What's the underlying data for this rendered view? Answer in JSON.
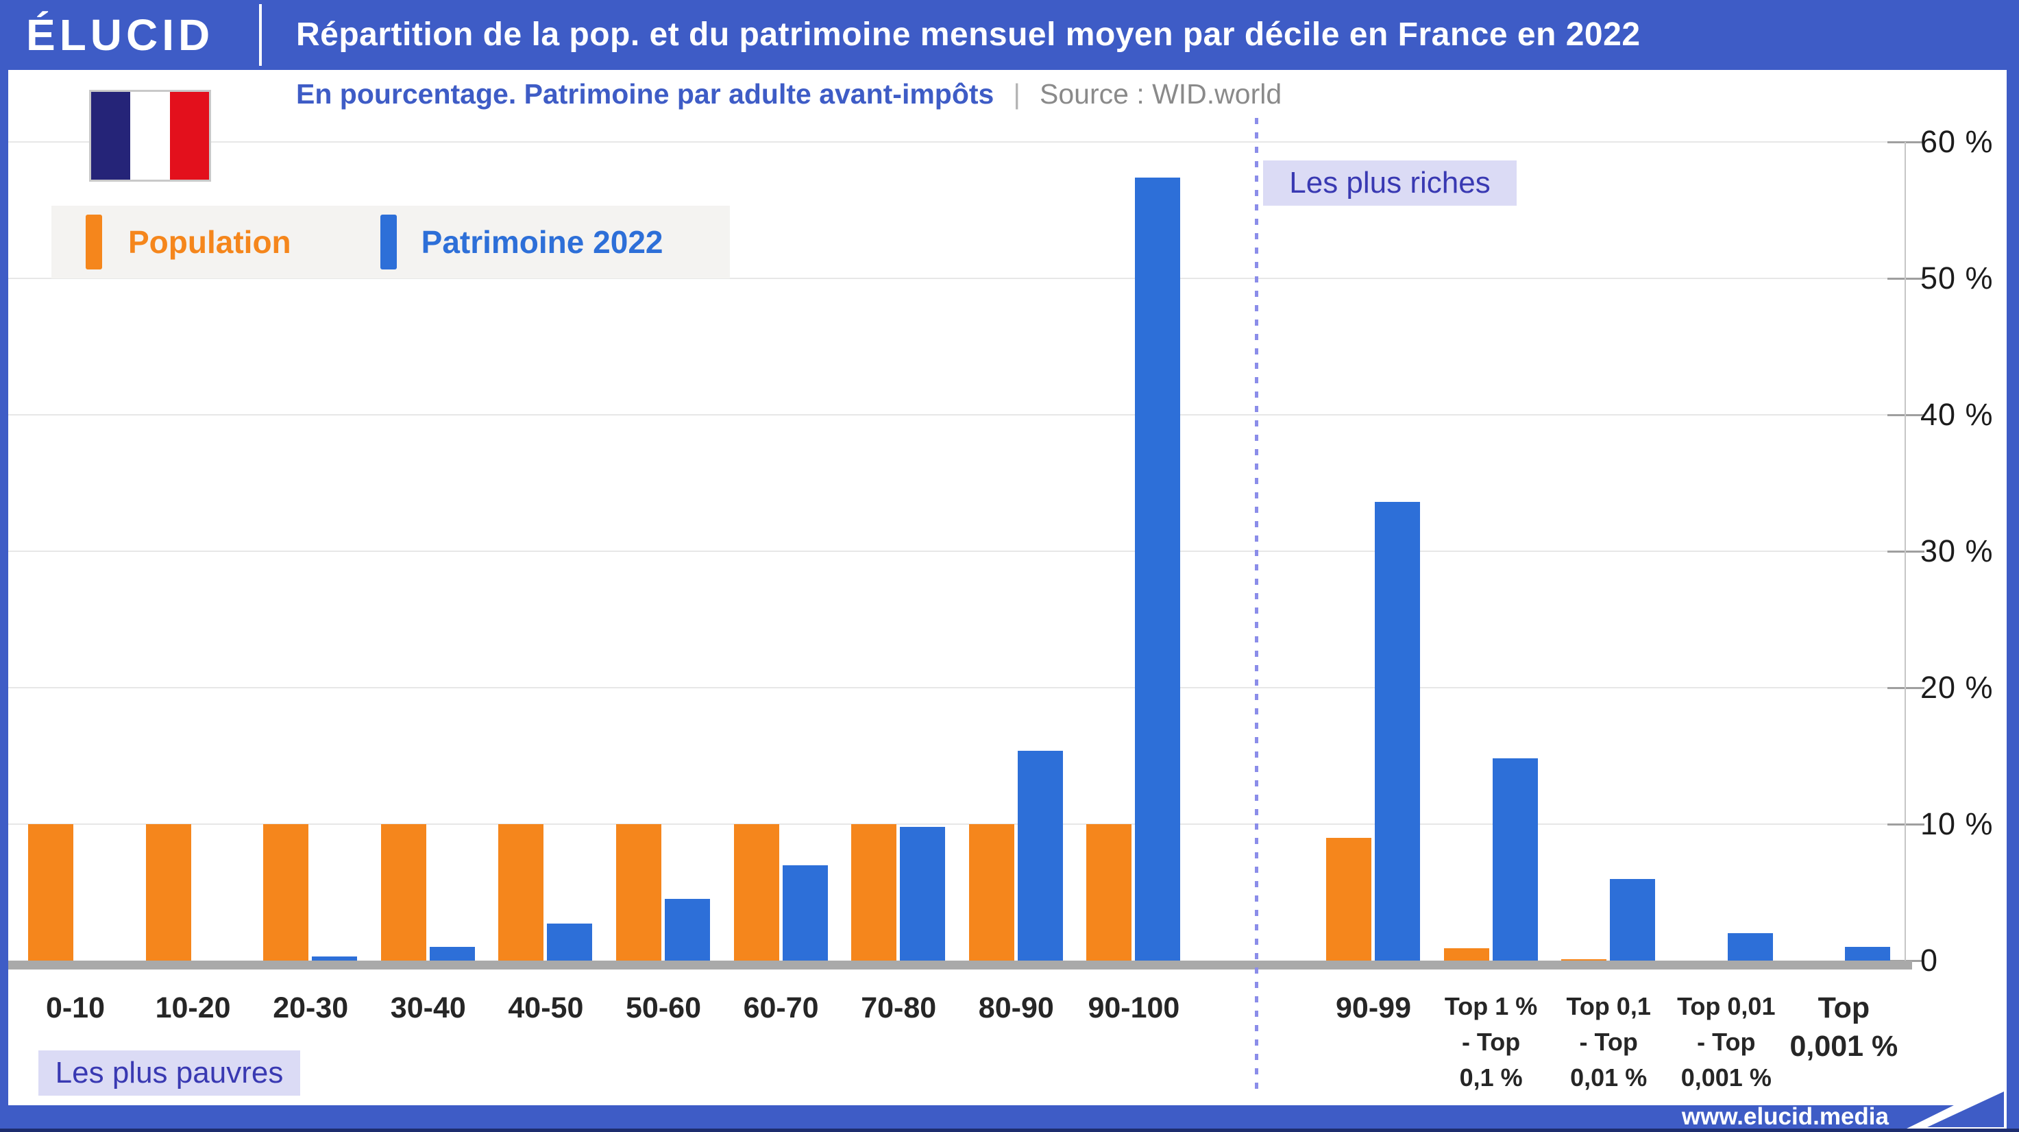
{
  "header": {
    "logo_text": "ÉLUCID",
    "title": "Répartition de la pop. et du patrimoine mensuel moyen par décile en France en 2022"
  },
  "subtitle": {
    "text": "En pourcentage. Patrimoine par adulte avant-impôts",
    "separator": "|",
    "source": "Source : WID.world"
  },
  "annotations": {
    "richest": "Les plus riches",
    "poorest": "Les plus pauvres"
  },
  "footer": {
    "url": "www.elucid.media"
  },
  "flag": {
    "navy": "#252478",
    "white": "#FFFFFF",
    "red": "#E3101C"
  },
  "colors": {
    "header_blue": "#3E5CC6",
    "population_orange": "#F5861C",
    "wealth_blue": "#2D6FD8",
    "annotation_bg": "#DBDBF5",
    "annotation_text": "#3939B2",
    "dotted_line": "#8B8DE9",
    "grid": "#E7E7E7",
    "baseline": "#A9A9A9",
    "source_gray": "#8A8A8A",
    "footer_navy": "#1D2C6E"
  },
  "chart_data": {
    "type": "bar",
    "title": "Répartition de la pop. et du patrimoine mensuel moyen par décile en France en 2022",
    "subtitle": "En pourcentage. Patrimoine par adulte avant-impôts",
    "source": "WID.world",
    "unit": "%",
    "ylim": [
      0,
      60
    ],
    "grid": true,
    "legend_position": "top-left",
    "yticks": [
      {
        "value": 0,
        "label": "0"
      },
      {
        "value": 10,
        "label": "10 %"
      },
      {
        "value": 20,
        "label": "20 %"
      },
      {
        "value": 30,
        "label": "30 %"
      },
      {
        "value": 40,
        "label": "40 %"
      },
      {
        "value": 50,
        "label": "50 %"
      },
      {
        "value": 60,
        "label": "60 %"
      }
    ],
    "groups": [
      {
        "id": "deciles",
        "annotation": "Les plus pauvres",
        "categories": [
          "0-10",
          "10-20",
          "20-30",
          "30-40",
          "40-50",
          "50-60",
          "60-70",
          "70-80",
          "80-90",
          "90-100"
        ],
        "category_label_lines": [
          [
            "0-10"
          ],
          [
            "10-20"
          ],
          [
            "20-30"
          ],
          [
            "30-40"
          ],
          [
            "40-50"
          ],
          [
            "50-60"
          ],
          [
            "60-70"
          ],
          [
            "70-80"
          ],
          [
            "80-90"
          ],
          [
            "90-100"
          ]
        ],
        "label_size": [
          "lg",
          "lg",
          "lg",
          "lg",
          "lg",
          "lg",
          "lg",
          "lg",
          "lg",
          "lg"
        ],
        "series": [
          {
            "name": "Population",
            "color": "#F5861C",
            "values": [
              10,
              10,
              10,
              10,
              10,
              10,
              10,
              10,
              10,
              10
            ]
          },
          {
            "name": "Patrimoine 2022",
            "color": "#2D6FD8",
            "values": [
              0,
              0,
              0.3,
              1,
              2.7,
              4.5,
              7,
              9.8,
              15.4,
              57.4
            ]
          }
        ]
      },
      {
        "id": "top-fractiles",
        "annotation": "Les plus riches",
        "categories": [
          "90-99",
          "Top 1 % - Top 0,1 %",
          "Top 0,1 - Top 0,01 %",
          "Top 0,01 - Top 0,001 %",
          "Top 0,001 %"
        ],
        "category_label_lines": [
          [
            "90-99"
          ],
          [
            "Top 1 %",
            "- Top",
            "0,1 %"
          ],
          [
            "Top 0,1",
            "- Top",
            "0,01 %"
          ],
          [
            "Top 0,01",
            "- Top",
            "0,001 %"
          ],
          [
            "Top",
            "0,001 %"
          ]
        ],
        "label_size": [
          "lg",
          "sm",
          "sm",
          "sm",
          "lg"
        ],
        "series": [
          {
            "name": "Population",
            "color": "#F5861C",
            "values": [
              9,
              0.9,
              0.09,
              0.009,
              0.001
            ]
          },
          {
            "name": "Patrimoine 2022",
            "color": "#2D6FD8",
            "values": [
              33.6,
              14.8,
              6,
              2,
              1
            ]
          }
        ]
      }
    ]
  }
}
